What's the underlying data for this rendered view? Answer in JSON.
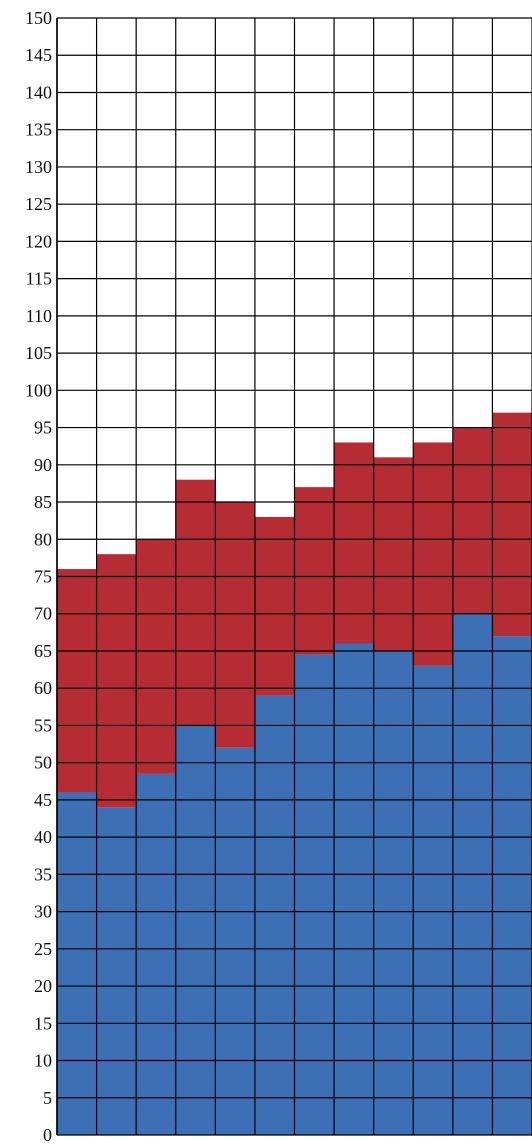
{
  "chart_data": {
    "type": "bar",
    "stacked": true,
    "title": "",
    "xlabel": "",
    "ylabel": "",
    "ylim": [
      0,
      150
    ],
    "yticks": [
      0,
      5,
      10,
      15,
      20,
      25,
      30,
      35,
      40,
      45,
      50,
      55,
      60,
      65,
      70,
      75,
      80,
      85,
      90,
      95,
      100,
      105,
      110,
      115,
      120,
      125,
      130,
      135,
      140,
      145,
      150
    ],
    "grid": true,
    "legend": "none",
    "colors": {
      "bottom": "#3d6fb4",
      "top": "#b52c35",
      "grid": "#000000",
      "background": "#ffffff"
    },
    "series": [
      {
        "values": [
          46,
          44,
          48.5,
          55,
          52,
          59,
          64.5,
          66,
          65,
          63,
          70,
          67
        ]
      },
      {
        "values": [
          30,
          34,
          31.5,
          33,
          33,
          24,
          22.5,
          27,
          26,
          30,
          25,
          30
        ]
      }
    ],
    "totals": [
      76,
      78,
      80,
      88,
      85,
      83,
      87,
      93,
      91,
      93,
      95,
      97
    ]
  }
}
